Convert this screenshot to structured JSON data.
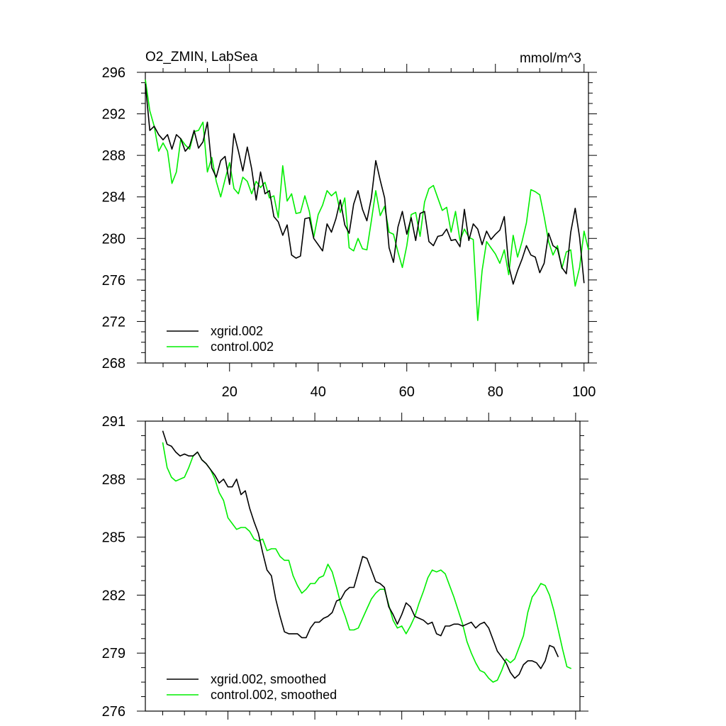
{
  "colors": {
    "xgrid": "#000000",
    "control": "#00ee00"
  },
  "chart_data": [
    {
      "type": "line",
      "title_left": "O2_ZMIN, LabSea",
      "title_right": "mmol/m^3",
      "xlabel": "",
      "ylabel": "",
      "xlim": [
        1,
        101
      ],
      "ylim": [
        268,
        296
      ],
      "yticks": [
        296,
        292,
        288,
        284,
        280,
        276,
        272,
        268
      ],
      "xticks": [
        20,
        40,
        60,
        80,
        100
      ],
      "show_x_tick_labels": true,
      "legend_position": "bottom-left",
      "series": [
        {
          "name": "xgrid.002",
          "color": "#000000",
          "values": [
            294.9,
            290.4,
            290.8,
            290.0,
            289.5,
            290.0,
            288.6,
            290.0,
            289.6,
            288.4,
            288.9,
            290.4,
            288.7,
            289.3,
            291.2,
            286.8,
            285.9,
            287.5,
            287.9,
            285.2,
            290.1,
            288.4,
            286.5,
            288.8,
            286.7,
            283.7,
            286.4,
            284.3,
            284.6,
            282.1,
            281.6,
            280.3,
            281.3,
            278.4,
            278.1,
            278.3,
            281.9,
            282.0,
            280.0,
            279.4,
            278.8,
            281.4,
            280.6,
            281.9,
            283.7,
            281.3,
            280.5,
            283.3,
            284.6,
            282.8,
            281.7,
            283.9,
            287.5,
            285.6,
            283.9,
            279.1,
            277.7,
            281.1,
            282.6,
            280.4,
            282.0,
            279.8,
            282.4,
            282.6,
            279.7,
            279.3,
            280.2,
            280.3,
            280.9,
            279.8,
            279.9,
            279.2,
            282.8,
            279.8,
            281.4,
            280.9,
            279.4,
            280.7,
            279.9,
            280.4,
            280.8,
            282.1,
            277.4,
            275.6,
            276.9,
            278.0,
            279.3,
            278.4,
            278.2,
            276.7,
            277.6,
            280.5,
            279.3,
            279.0,
            277.2,
            276.6,
            280.6,
            282.9,
            280.1,
            275.7
          ]
        },
        {
          "name": "control.002",
          "color": "#00ee00",
          "values": [
            295.3,
            292.3,
            290.8,
            288.4,
            289.2,
            288.4,
            285.3,
            286.4,
            289.6,
            289.0,
            288.6,
            290.3,
            290.4,
            291.2,
            286.4,
            287.8,
            285.5,
            284.0,
            285.7,
            287.3,
            284.8,
            284.3,
            285.9,
            285.5,
            284.3,
            285.5,
            284.9,
            285.4,
            283.9,
            284.1,
            282.0,
            287.0,
            283.6,
            284.3,
            282.4,
            282.5,
            284.1,
            282.6,
            280.1,
            282.3,
            283.2,
            284.6,
            284.1,
            284.5,
            282.5,
            283.9,
            279.1,
            278.8,
            280.0,
            279.0,
            278.9,
            281.7,
            284.6,
            282.2,
            283.1,
            280.6,
            280.4,
            278.7,
            277.2,
            279.3,
            282.3,
            282.5,
            280.2,
            283.5,
            284.8,
            285.1,
            283.9,
            282.7,
            283.0,
            280.6,
            282.6,
            279.8,
            280.9,
            280.1,
            279.9,
            272.1,
            276.9,
            279.7,
            279.1,
            278.5,
            277.6,
            278.9,
            276.5,
            280.3,
            278.2,
            279.7,
            281.5,
            284.7,
            284.5,
            284.2,
            282.1,
            279.7,
            278.4,
            279.3,
            277.1,
            278.7,
            278.9,
            275.4,
            277.2,
            280.7,
            278.9
          ]
        }
      ]
    },
    {
      "type": "line",
      "title_left": "",
      "title_right": "",
      "xlabel": "",
      "ylabel": "",
      "xlim": [
        1,
        101
      ],
      "ylim": [
        276,
        291
      ],
      "yticks": [
        291,
        288,
        285,
        282,
        279,
        276
      ],
      "xticks": [
        20,
        40,
        60,
        80,
        100
      ],
      "show_x_tick_labels": false,
      "legend_position": "bottom-left",
      "series": [
        {
          "name": "xgrid.002, smoothed",
          "color": "#000000",
          "x_start": 5,
          "values": [
            290.5,
            289.8,
            289.7,
            289.4,
            289.2,
            289.3,
            289.2,
            289.2,
            289.4,
            289.0,
            288.8,
            288.5,
            288.2,
            287.8,
            288.0,
            287.6,
            287.6,
            288.0,
            287.2,
            287.4,
            286.5,
            285.8,
            285.2,
            284.2,
            283.3,
            283.0,
            281.8,
            280.9,
            280.1,
            280.0,
            280.0,
            280.0,
            279.8,
            279.8,
            280.3,
            280.6,
            280.6,
            280.8,
            280.9,
            281.1,
            281.7,
            281.8,
            282.2,
            282.4,
            282.4,
            283.2,
            284.0,
            283.9,
            283.3,
            282.7,
            282.6,
            282.4,
            281.4,
            281.0,
            280.5,
            281.0,
            281.6,
            281.4,
            280.9,
            280.8,
            280.7,
            280.5,
            280.6,
            280.0,
            279.9,
            280.4,
            280.4,
            280.5,
            280.5,
            280.4,
            280.5,
            280.6,
            280.3,
            280.5,
            280.6,
            280.3,
            279.7,
            279.1,
            278.8,
            278.5,
            278.0,
            277.7,
            277.9,
            278.4,
            278.6,
            278.6,
            278.5,
            278.2,
            278.6,
            279.4,
            279.3,
            278.8
          ]
        },
        {
          "name": "control.002, smoothed",
          "color": "#00ee00",
          "x_start": 5,
          "values": [
            289.9,
            288.6,
            288.1,
            287.9,
            288.0,
            288.1,
            288.6,
            289.2,
            289.4,
            289.0,
            288.8,
            288.5,
            288.0,
            287.3,
            286.9,
            286.0,
            285.7,
            285.4,
            285.5,
            285.5,
            285.3,
            284.9,
            284.8,
            284.9,
            284.3,
            284.4,
            284.4,
            284.0,
            283.8,
            283.8,
            283.0,
            282.5,
            282.1,
            282.3,
            282.6,
            282.6,
            282.9,
            283.0,
            283.6,
            283.2,
            282.4,
            281.5,
            280.9,
            280.2,
            280.2,
            280.3,
            280.8,
            281.3,
            281.8,
            282.1,
            282.3,
            282.3,
            281.5,
            280.7,
            280.3,
            280.4,
            280.0,
            280.4,
            280.9,
            281.6,
            282.2,
            282.9,
            283.3,
            283.2,
            283.3,
            283.1,
            282.5,
            281.9,
            281.2,
            280.5,
            279.6,
            279.0,
            278.5,
            278.1,
            278.0,
            277.7,
            277.5,
            277.6,
            278.1,
            278.7,
            278.5,
            278.7,
            279.3,
            279.9,
            281.1,
            281.9,
            282.2,
            282.6,
            282.5,
            282.0,
            281.2,
            280.2,
            279.2,
            278.3,
            278.2
          ]
        }
      ]
    }
  ]
}
